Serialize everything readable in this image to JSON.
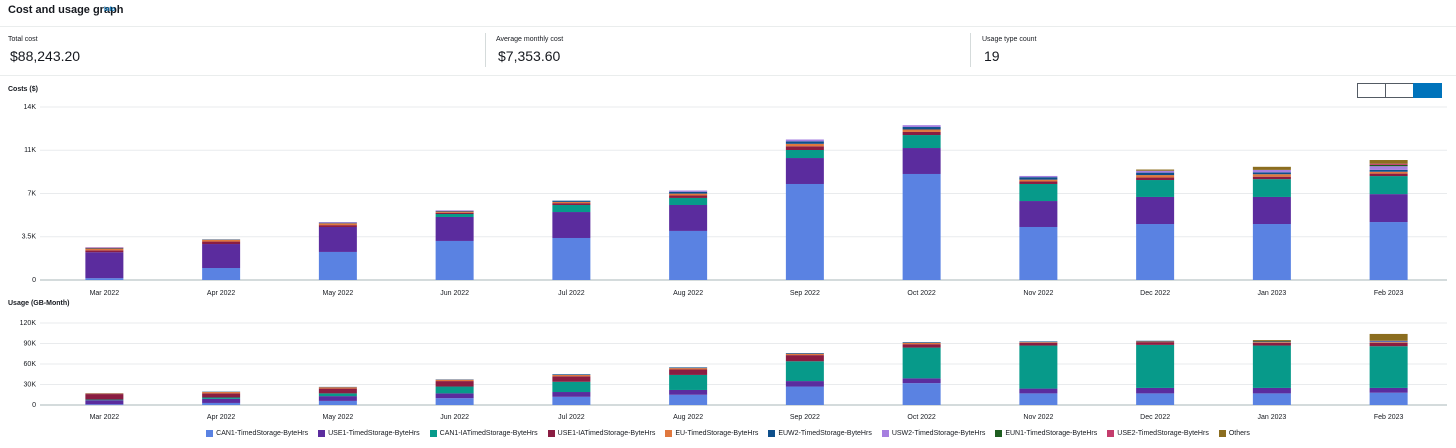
{
  "header": {
    "title": "Cost and usage graph",
    "info": "Info"
  },
  "summary": [
    {
      "label": "Total cost",
      "value": "$88,243.20"
    },
    {
      "label": "Average monthly cost",
      "value": "$7,353.60"
    },
    {
      "label": "Usage type count",
      "value": "19"
    }
  ],
  "chart_data": [
    {
      "type": "bar",
      "stacked": true,
      "title": "Costs ($)",
      "grid": true,
      "categories": [
        "Mar 2022",
        "Apr 2022",
        "May 2022",
        "Jun 2022",
        "Jul 2022",
        "Aug 2022",
        "Sep 2022",
        "Oct 2022",
        "Nov 2022",
        "Dec 2022",
        "Jan 2023",
        "Feb 2023"
      ],
      "ylim": [
        0,
        14000
      ],
      "yticks": [
        0,
        {
          "value": 3500,
          "label": "3.5K"
        },
        {
          "value": 7000,
          "label": "7K"
        },
        {
          "value": 10500,
          "label": "11K"
        },
        {
          "value": 14000,
          "label": "14K"
        }
      ],
      "series": [
        {
          "name": "CAN1-TimedStorage-ByteHrs",
          "color": "#5a82e2",
          "values": [
            150,
            970,
            2270,
            3160,
            3400,
            3970,
            7770,
            8580,
            4290,
            4530,
            4530,
            4690
          ]
        },
        {
          "name": "USE1-TimedStorage-ByteHrs",
          "color": "#5b2c9e",
          "values": [
            2100,
            1940,
            2020,
            1940,
            2100,
            2100,
            2100,
            2100,
            2100,
            2190,
            2190,
            2260
          ]
        },
        {
          "name": "CAN1-IATimedStorage-ByteHrs",
          "color": "#079a8a",
          "values": [
            0,
            0,
            0,
            240,
            570,
            570,
            650,
            1050,
            1380,
            1370,
            1440,
            1460
          ]
        },
        {
          "name": "USE1-IATimedStorage-ByteHrs",
          "color": "#8a1d42",
          "values": [
            150,
            200,
            150,
            100,
            150,
            200,
            300,
            250,
            200,
            200,
            200,
            200
          ]
        },
        {
          "name": "EU-TimedStorage-ByteHrs",
          "color": "#e0783e",
          "values": [
            150,
            150,
            150,
            100,
            100,
            150,
            200,
            200,
            150,
            200,
            200,
            150
          ]
        },
        {
          "name": "EUW2-TimedStorage-ByteHrs",
          "color": "#0e4f8b",
          "values": [
            50,
            30,
            50,
            50,
            100,
            150,
            200,
            200,
            200,
            200,
            150,
            150
          ]
        },
        {
          "name": "USW2-TimedStorage-ByteHrs",
          "color": "#a67fe0",
          "values": [
            30,
            0,
            50,
            50,
            0,
            100,
            150,
            150,
            100,
            150,
            200,
            300
          ]
        },
        {
          "name": "EUN1-TimedStorage-ByteHrs",
          "color": "#1e5e20",
          "values": [
            0,
            0,
            0,
            0,
            0,
            0,
            0,
            0,
            0,
            0,
            0,
            100
          ]
        },
        {
          "name": "USE2-TimedStorage-ByteHrs",
          "color": "#c43c6c",
          "values": [
            20,
            0,
            0,
            0,
            0,
            0,
            0,
            0,
            0,
            0,
            0,
            100
          ]
        },
        {
          "name": "Others",
          "color": "#8b6d1f",
          "values": [
            0,
            0,
            0,
            0,
            0,
            0,
            0,
            0,
            0,
            100,
            250,
            300
          ]
        }
      ]
    },
    {
      "type": "bar",
      "stacked": true,
      "title": "Usage (GB-Month)",
      "grid": true,
      "categories": [
        "Mar 2022",
        "Apr 2022",
        "May 2022",
        "Jun 2022",
        "Jul 2022",
        "Aug 2022",
        "Sep 2022",
        "Oct 2022",
        "Nov 2022",
        "Dec 2022",
        "Jan 2023",
        "Feb 2023"
      ],
      "ylim": [
        0,
        120000
      ],
      "yticks": [
        0,
        {
          "value": 30000,
          "label": "30K"
        },
        {
          "value": 60000,
          "label": "60K"
        },
        {
          "value": 90000,
          "label": "90K"
        },
        {
          "value": 120000,
          "label": "120K"
        }
      ],
      "series": [
        {
          "name": "CAN1-TimedStorage-ByteHrs",
          "color": "#5a82e2",
          "values": [
            1000,
            3000,
            6000,
            10000,
            12000,
            15000,
            27000,
            32000,
            17000,
            17000,
            17000,
            18000
          ]
        },
        {
          "name": "USE1-TimedStorage-ByteHrs",
          "color": "#5b2c9e",
          "values": [
            6000,
            6000,
            7000,
            7000,
            7000,
            7000,
            8000,
            7000,
            7000,
            8000,
            8000,
            7000
          ]
        },
        {
          "name": "CAN1-IATimedStorage-ByteHrs",
          "color": "#079a8a",
          "values": [
            1000,
            2000,
            4000,
            10000,
            15000,
            22000,
            29000,
            45000,
            63000,
            63000,
            62000,
            61000
          ]
        },
        {
          "name": "USE1-IATimedStorage-ByteHrs",
          "color": "#8a1d42",
          "values": [
            8000,
            6000,
            7000,
            8000,
            8000,
            8000,
            9000,
            5000,
            4000,
            4000,
            4000,
            5000
          ]
        },
        {
          "name": "EU-TimedStorage-ByteHrs",
          "color": "#e0783e",
          "values": [
            1000,
            2000,
            2000,
            2000,
            2000,
            2000,
            2000,
            2000,
            1000,
            1000,
            1000,
            1000
          ]
        },
        {
          "name": "EUW2-TimedStorage-ByteHrs",
          "color": "#0e4f8b",
          "values": [
            300,
            500,
            500,
            500,
            1000,
            1000,
            1000,
            1000,
            1000,
            1000,
            1000,
            1000
          ]
        },
        {
          "name": "USW2-TimedStorage-ByteHrs",
          "color": "#a67fe0",
          "values": [
            0,
            0,
            0,
            0,
            0,
            0,
            0,
            0,
            0,
            0,
            0,
            1000
          ]
        },
        {
          "name": "EUN1-TimedStorage-ByteHrs",
          "color": "#1e5e20",
          "values": [
            0,
            0,
            0,
            0,
            0,
            0,
            0,
            0,
            0,
            0,
            0,
            0
          ]
        },
        {
          "name": "USE2-TimedStorage-ByteHrs",
          "color": "#c43c6c",
          "values": [
            0,
            0,
            0,
            0,
            0,
            0,
            0,
            0,
            0,
            0,
            0,
            0
          ]
        },
        {
          "name": "Others",
          "color": "#8b6d1f",
          "values": [
            0,
            0,
            0,
            0,
            0,
            0,
            0,
            0,
            0,
            0,
            2000,
            10000
          ]
        }
      ]
    }
  ]
}
